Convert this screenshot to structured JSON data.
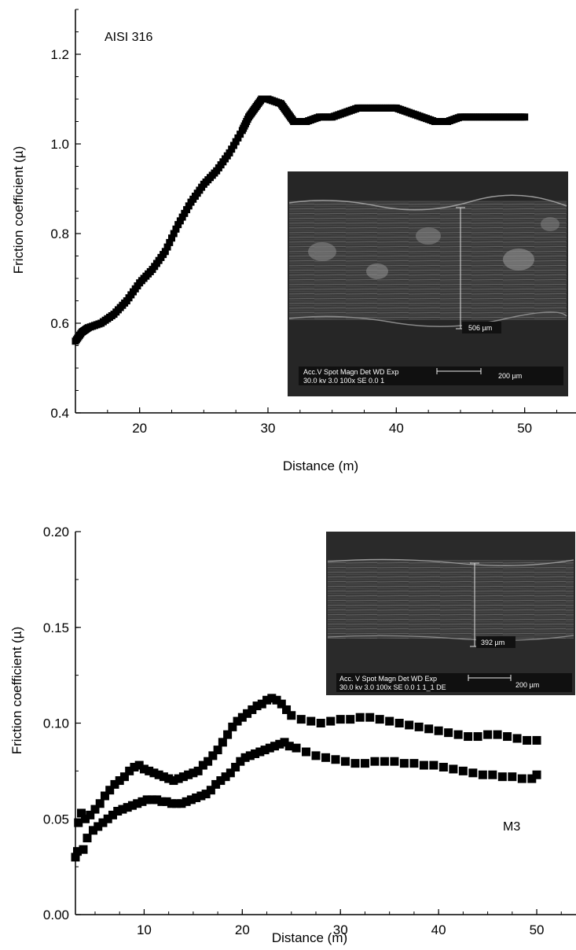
{
  "chart_data": [
    {
      "type": "line",
      "panel_label": "AISI 316",
      "xlabel": "Distance (m)",
      "ylabel": "Friction coefficient (µ)",
      "xlim": [
        15,
        54
      ],
      "ylim": [
        0.4,
        1.3
      ],
      "xticks": [
        "20",
        "30",
        "40",
        "50"
      ],
      "yticks": [
        "0.4",
        "0.6",
        "0.8",
        "1.0",
        "1.2"
      ],
      "series": [
        {
          "x": [
            15,
            15.5,
            16,
            17,
            18,
            19,
            20,
            21,
            22,
            23,
            24,
            25,
            26,
            27,
            28,
            28.5,
            29,
            29.5,
            30,
            31,
            31.5,
            32,
            33,
            34,
            35,
            36,
            37,
            38,
            39,
            40,
            41,
            42,
            43,
            44,
            45,
            46,
            47,
            48,
            49,
            50
          ],
          "y": [
            0.56,
            0.58,
            0.59,
            0.6,
            0.62,
            0.65,
            0.69,
            0.72,
            0.76,
            0.82,
            0.87,
            0.91,
            0.94,
            0.98,
            1.03,
            1.06,
            1.08,
            1.1,
            1.1,
            1.09,
            1.07,
            1.05,
            1.05,
            1.06,
            1.06,
            1.07,
            1.08,
            1.08,
            1.08,
            1.08,
            1.07,
            1.06,
            1.05,
            1.05,
            1.06,
            1.06,
            1.06,
            1.06,
            1.06,
            1.06
          ]
        }
      ],
      "inset": {
        "measure_label": "506 µm",
        "scale_label": "200 µm",
        "info_line1": "Acc.V  Spot Magn  Det  WD  Exp",
        "info_line2": "30.0 kv  3.0  100x  SE  0.0  1"
      }
    },
    {
      "type": "scatter",
      "panel_label": "M3",
      "xlabel": "Distance (m)",
      "ylabel": "Friction coefficient (µ)",
      "xlim": [
        3,
        54
      ],
      "ylim": [
        0,
        0.2
      ],
      "xticks": [
        "10",
        "20",
        "30",
        "40",
        "50"
      ],
      "yticks": [
        "0.00",
        "0.05",
        "0.10",
        "0.15",
        "0.20"
      ],
      "series": [
        {
          "x": [
            3,
            3.3,
            3.6,
            4,
            4.5,
            5,
            5.5,
            6,
            6.5,
            7,
            7.5,
            8,
            8.5,
            9,
            9.5,
            10,
            10.5,
            11,
            11.5,
            12,
            12.5,
            13,
            13.5,
            14,
            14.5,
            15,
            15.5,
            16,
            16.5,
            17,
            17.5,
            18,
            18.5,
            19,
            19.5,
            20,
            20.5,
            21,
            21.5,
            22,
            22.5,
            23,
            23.5,
            24,
            24.5,
            25,
            26,
            27,
            28,
            29,
            30,
            31,
            32,
            33,
            34,
            35,
            36,
            37,
            38,
            39,
            40,
            41,
            42,
            43,
            44,
            45,
            46,
            47,
            48,
            49,
            50
          ],
          "y": [
            0.03,
            0.048,
            0.053,
            0.05,
            0.052,
            0.055,
            0.058,
            0.062,
            0.065,
            0.068,
            0.07,
            0.072,
            0.075,
            0.077,
            0.078,
            0.076,
            0.075,
            0.074,
            0.073,
            0.072,
            0.071,
            0.07,
            0.071,
            0.072,
            0.073,
            0.074,
            0.075,
            0.078,
            0.08,
            0.083,
            0.086,
            0.09,
            0.094,
            0.098,
            0.101,
            0.103,
            0.105,
            0.107,
            0.109,
            0.11,
            0.112,
            0.113,
            0.112,
            0.11,
            0.107,
            0.104,
            0.102,
            0.101,
            0.1,
            0.101,
            0.102,
            0.102,
            0.103,
            0.103,
            0.102,
            0.101,
            0.1,
            0.099,
            0.098,
            0.097,
            0.096,
            0.095,
            0.094,
            0.093,
            0.093,
            0.094,
            0.094,
            0.093,
            0.092,
            0.091,
            0.091
          ]
        },
        {
          "x": [
            3.2,
            3.8,
            4.2,
            4.8,
            5.3,
            5.8,
            6.3,
            6.8,
            7.3,
            7.8,
            8.3,
            8.8,
            9.3,
            9.8,
            10.3,
            10.8,
            11.3,
            11.8,
            12.3,
            12.8,
            13.3,
            13.8,
            14.3,
            14.8,
            15.3,
            15.8,
            16.3,
            16.8,
            17.3,
            17.8,
            18.3,
            18.8,
            19.3,
            19.8,
            20.3,
            20.8,
            21.3,
            21.8,
            22.3,
            22.8,
            23.3,
            23.8,
            24.3,
            24.8,
            25.5,
            26.5,
            27.5,
            28.5,
            29.5,
            30.5,
            31.5,
            32.5,
            33.5,
            34.5,
            35.5,
            36.5,
            37.5,
            38.5,
            39.5,
            40.5,
            41.5,
            42.5,
            43.5,
            44.5,
            45.5,
            46.5,
            47.5,
            48.5,
            49.5,
            50
          ],
          "y": [
            0.033,
            0.034,
            0.04,
            0.044,
            0.046,
            0.048,
            0.05,
            0.052,
            0.054,
            0.055,
            0.056,
            0.057,
            0.058,
            0.059,
            0.06,
            0.06,
            0.06,
            0.059,
            0.059,
            0.058,
            0.058,
            0.058,
            0.059,
            0.06,
            0.061,
            0.062,
            0.063,
            0.065,
            0.068,
            0.07,
            0.072,
            0.074,
            0.077,
            0.08,
            0.082,
            0.083,
            0.084,
            0.085,
            0.086,
            0.087,
            0.088,
            0.089,
            0.09,
            0.088,
            0.087,
            0.085,
            0.083,
            0.082,
            0.081,
            0.08,
            0.079,
            0.079,
            0.08,
            0.08,
            0.08,
            0.079,
            0.079,
            0.078,
            0.078,
            0.077,
            0.076,
            0.075,
            0.074,
            0.073,
            0.073,
            0.072,
            0.072,
            0.071,
            0.071,
            0.073
          ]
        }
      ],
      "inset": {
        "measure_label": "392 µm",
        "scale_label": "200 µm",
        "info_line1": "Acc. V  Spot Magn  Det  WD  Exp",
        "info_line2": "30.0 kv  3.0  100x  SE  0.0  1  1_1 DE"
      }
    }
  ]
}
